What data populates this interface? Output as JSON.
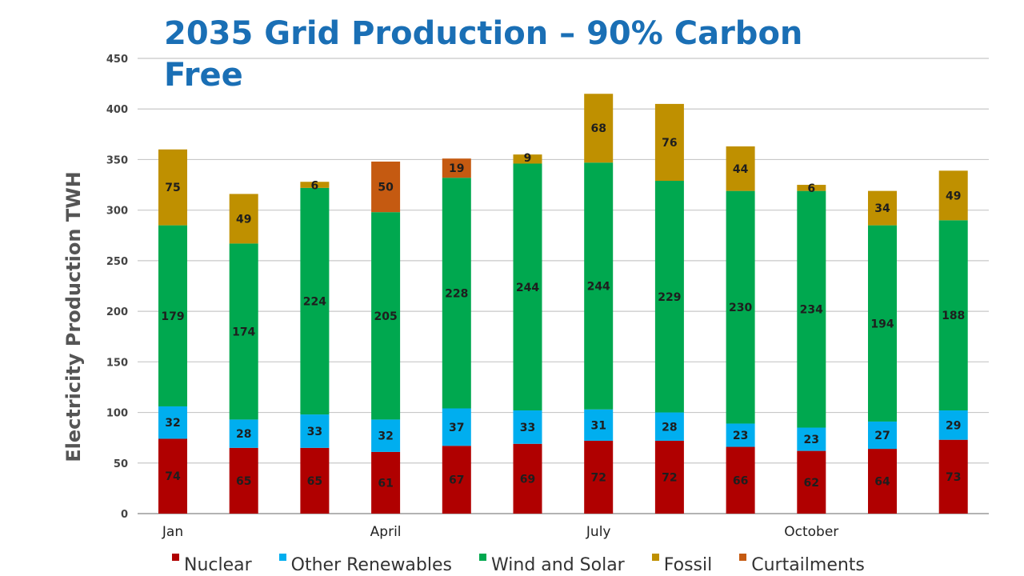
{
  "chart_data": {
    "type": "bar",
    "stacked": true,
    "title": "2035 Grid Production – 90% Carbon Free",
    "xlabel": "",
    "ylabel": "Electricity Production TWH",
    "ylim": [
      0,
      450
    ],
    "yticks": [
      0,
      50,
      100,
      150,
      200,
      250,
      300,
      350,
      400,
      450
    ],
    "grid": true,
    "legend_position": "bottom",
    "categories": [
      "Jan",
      "",
      "",
      "April",
      "",
      "",
      "July",
      "",
      "",
      "October",
      "",
      ""
    ],
    "series": [
      {
        "name": "Nuclear",
        "color": "#b00000",
        "values": [
          74,
          65,
          65,
          61,
          67,
          69,
          72,
          72,
          66,
          62,
          64,
          73
        ]
      },
      {
        "name": "Other Renewables",
        "color": "#00aeef",
        "values": [
          32,
          28,
          33,
          32,
          37,
          33,
          31,
          28,
          23,
          23,
          27,
          29
        ]
      },
      {
        "name": "Wind and Solar",
        "color": "#00a84f",
        "values": [
          179,
          174,
          224,
          205,
          228,
          244,
          244,
          229,
          230,
          234,
          194,
          188
        ]
      },
      {
        "name": "Fossil",
        "color": "#bf9000",
        "values": [
          75,
          49,
          6,
          0,
          0,
          9,
          68,
          76,
          44,
          6,
          34,
          49
        ]
      },
      {
        "name": "Curtailments",
        "color": "#c55a11",
        "values": [
          0,
          0,
          0,
          50,
          19,
          0,
          0,
          0,
          0,
          0,
          0,
          0
        ]
      }
    ]
  }
}
